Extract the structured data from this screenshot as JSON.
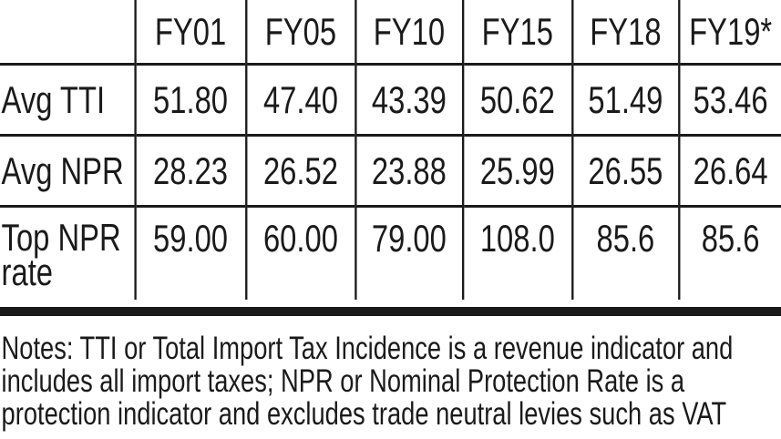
{
  "table": {
    "columns": [
      "FY01",
      "FY05",
      "FY10",
      "FY15",
      "FY18",
      "FY19*"
    ],
    "rows": [
      {
        "label": "Avg TTI",
        "values": [
          "51.80",
          "47.40",
          "43.39",
          "50.62",
          "51.49",
          "53.46"
        ]
      },
      {
        "label": "Avg NPR",
        "values": [
          "28.23",
          "26.52",
          "23.88",
          "25.99",
          "26.55",
          "26.64"
        ]
      },
      {
        "label": "Top NPR rate",
        "values": [
          "59.00",
          "60.00",
          "79.00",
          "108.0",
          "85.6",
          "85.6"
        ]
      }
    ]
  },
  "notes": "Notes: TTI or Total Import Tax Incidence is a revenue indicator and includes all import taxes; NPR or Nominal Protection Rate is a protection indicator and excludes trade neutral levies such as VAT"
}
